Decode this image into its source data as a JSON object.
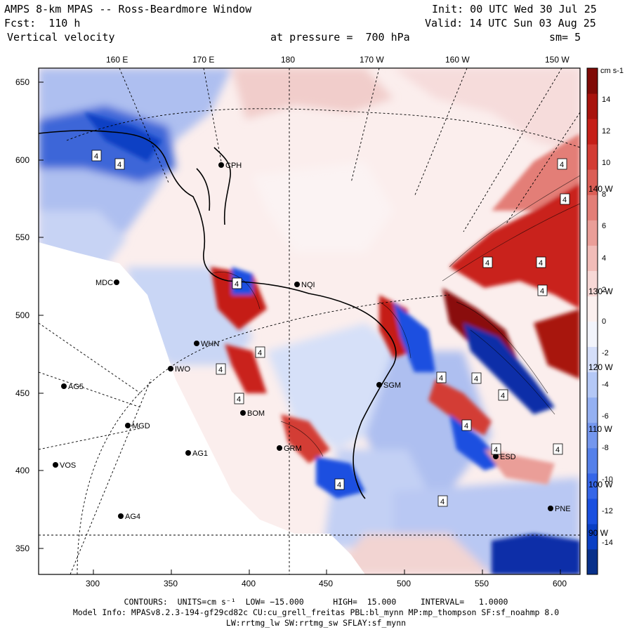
{
  "header": {
    "title": "AMPS 8-km MPAS -- Ross-Beardmore Window",
    "forecast": "Fcst:  110 h",
    "field": "Vertical velocity",
    "init": "Init: 00 UTC Wed 30 Jul 25",
    "valid": "Valid: 14 UTC Sun 03 Aug 25",
    "pressure": "at pressure =  700 hPa",
    "smoothing": "sm= 5"
  },
  "axes": {
    "top_labels": [
      "160 E",
      "170 E",
      "180",
      "170 W",
      "160 W",
      "150 W"
    ],
    "x_ticks": [
      "300",
      "350",
      "400",
      "450",
      "500",
      "550",
      "600"
    ],
    "y_ticks": [
      "650",
      "600",
      "550",
      "500",
      "450",
      "400",
      "350"
    ],
    "lon_labels_right": [
      "140 W",
      "130 W",
      "120 W",
      "110 W",
      "100 W",
      "90 W"
    ]
  },
  "colorbar": {
    "units": "cm s-1",
    "tick_labels": [
      "14",
      "12",
      "10",
      "8",
      "6",
      "4",
      "2",
      "0",
      "-2",
      "-4",
      "-6",
      "-8",
      "-10",
      "-12",
      "-14"
    ],
    "colors": [
      "#08308a",
      "#0a3fc4",
      "#1a50e0",
      "#3566e8",
      "#5480ea",
      "#7497ee",
      "#94b0f2",
      "#b4c8f6",
      "#d4def9",
      "#f2f4fb",
      "#fbf0ef",
      "#f7d8d6",
      "#f1bcb8",
      "#ea9e98",
      "#e37e77",
      "#db5e56",
      "#d33c34",
      "#c51f18",
      "#a8130d",
      "#800a06"
    ]
  },
  "stations": [
    {
      "code": "CPH"
    },
    {
      "code": "MDC"
    },
    {
      "code": "NQI"
    },
    {
      "code": "WHN"
    },
    {
      "code": "IWO"
    },
    {
      "code": "AG5"
    },
    {
      "code": "MGD"
    },
    {
      "code": "BOM"
    },
    {
      "code": "GRM"
    },
    {
      "code": "AG1"
    },
    {
      "code": "VOS"
    },
    {
      "code": "AG4"
    },
    {
      "code": "PNE"
    },
    {
      "code": "SGM"
    },
    {
      "code": "ESD"
    }
  ],
  "contour_label": "4",
  "footer": {
    "contours": "CONTOURS:  UNITS=cm s⁻¹  LOW= −15.000      HIGH=  15.000     INTERVAL=   1.0000",
    "model_info": "Model Info: MPASv8.2.3-194-gf29cd82c CU:cu_grell_freitas PBL:bl_mynn MP:mp_thompson SF:sf_noahmp 8.0",
    "model_info2": "LW:rrtmg_lw SW:rrtmg_sw SFLAY:sf_mynn"
  }
}
